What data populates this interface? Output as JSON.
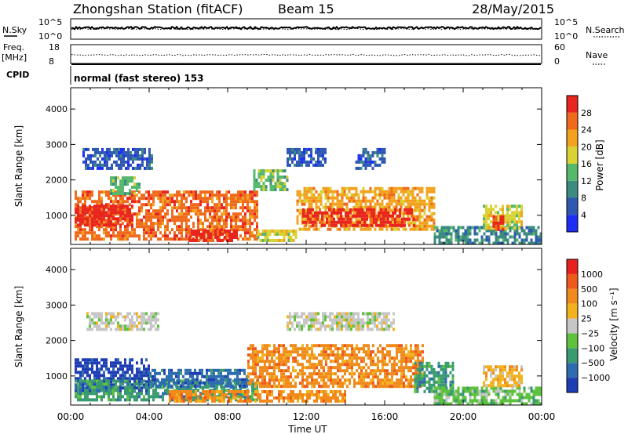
{
  "header": {
    "station": "Zhongshan Station (fitACF)",
    "beam": "Beam 15",
    "date": "28/May/2015"
  },
  "nsky_panel": {
    "left_label": "N.Sky",
    "right_label": "N.Search",
    "left_ticks": [
      "10^5",
      "10^0"
    ],
    "right_ticks": [
      "10^5",
      "10^0"
    ]
  },
  "freq_panel": {
    "left_label": "Freq.",
    "left_unit": "[MHz]",
    "right_label": "Nave",
    "left_ticks": [
      "18",
      "8"
    ],
    "right_ticks": [
      "60",
      "0"
    ]
  },
  "cpid": {
    "label": "CPID",
    "value": "normal (fast stereo) 153"
  },
  "x_axis": {
    "label": "Time UT",
    "ticks": [
      "00:00",
      "04:00",
      "08:00",
      "12:00",
      "16:00",
      "20:00",
      "00:00"
    ],
    "range_hours": [
      0,
      24
    ]
  },
  "y_axis": {
    "label": "Slant Range [km]",
    "ticks": [
      1000,
      2000,
      3000,
      4000
    ],
    "range_km": [
      180,
      4600
    ]
  },
  "power_colorbar": {
    "label": "Power [dB]",
    "ticks": [
      "4",
      "8",
      "12",
      "16",
      "20",
      "24",
      "28"
    ],
    "colors": [
      "#1e2ef5",
      "#2f58b3",
      "#3c8a80",
      "#55b86b",
      "#d8d233",
      "#f2a21e",
      "#ef6a1b",
      "#e8251e"
    ]
  },
  "velocity_colorbar": {
    "label": "Velocity [m s⁻¹]",
    "ticks": [
      "1000",
      "500",
      "100",
      "25",
      "−25",
      "−100",
      "−500",
      "−1000"
    ],
    "colors": [
      "#1e3db3",
      "#2e6cb0",
      "#3a9a70",
      "#5ec23c",
      "#c6c6c6",
      "#f2b21e",
      "#ef8a1b",
      "#ee5a1b",
      "#e8201e"
    ]
  },
  "chart_data": {
    "type": "heatmap",
    "x_unit": "hours UT",
    "y_unit": "km",
    "power_regions": [
      {
        "t0": 0.2,
        "t1": 9.5,
        "r0": 300,
        "r1": 1700,
        "level": 6
      },
      {
        "t0": 0.2,
        "t1": 3.2,
        "r0": 700,
        "r1": 1300,
        "level": 7
      },
      {
        "t0": 6.0,
        "t1": 8.5,
        "r0": 300,
        "r1": 600,
        "level": 7
      },
      {
        "t0": 2.0,
        "t1": 3.5,
        "r0": 1600,
        "r1": 2100,
        "level": 3
      },
      {
        "t0": 0.6,
        "t1": 4.2,
        "r0": 2300,
        "r1": 2900,
        "level": 1
      },
      {
        "t0": 9.5,
        "t1": 11.5,
        "r0": 300,
        "r1": 600,
        "level": 4
      },
      {
        "t0": 9.3,
        "t1": 11.0,
        "r0": 1700,
        "r1": 2300,
        "level": 3
      },
      {
        "t0": 11.5,
        "t1": 18.5,
        "r0": 600,
        "r1": 1800,
        "level": 5
      },
      {
        "t0": 11.8,
        "t1": 17.5,
        "r0": 700,
        "r1": 1200,
        "level": 7
      },
      {
        "t0": 14.5,
        "t1": 16.0,
        "r0": 2300,
        "r1": 2900,
        "level": 1
      },
      {
        "t0": 11.0,
        "t1": 13.0,
        "r0": 2400,
        "r1": 2900,
        "level": 1
      },
      {
        "t0": 18.5,
        "t1": 24.0,
        "r0": 250,
        "r1": 700,
        "level": 2
      },
      {
        "t0": 21.0,
        "t1": 23.0,
        "r0": 600,
        "r1": 1300,
        "level": 4
      },
      {
        "t0": 21.5,
        "t1": 22.0,
        "r0": 600,
        "r1": 1000,
        "level": 7
      }
    ],
    "velocity_regions": [
      {
        "t0": 0.2,
        "t1": 4.0,
        "r0": 600,
        "r1": 1500,
        "level": 0
      },
      {
        "t0": 0.2,
        "t1": 9.5,
        "r0": 300,
        "r1": 900,
        "level": 2
      },
      {
        "t0": 4.0,
        "t1": 9.0,
        "r0": 700,
        "r1": 1200,
        "level": 1
      },
      {
        "t0": 0.8,
        "t1": 4.5,
        "r0": 2300,
        "r1": 2800,
        "level": 4
      },
      {
        "t0": 5.0,
        "t1": 9.0,
        "r0": 300,
        "r1": 600,
        "level": 6
      },
      {
        "t0": 9.0,
        "t1": 18.0,
        "r0": 700,
        "r1": 1900,
        "level": 6
      },
      {
        "t0": 9.0,
        "t1": 14.0,
        "r0": 300,
        "r1": 600,
        "level": 6
      },
      {
        "t0": 11.0,
        "t1": 16.5,
        "r0": 2300,
        "r1": 2800,
        "level": 4
      },
      {
        "t0": 17.5,
        "t1": 19.5,
        "r0": 600,
        "r1": 1400,
        "level": 2
      },
      {
        "t0": 18.5,
        "t1": 24.0,
        "r0": 250,
        "r1": 700,
        "level": 3
      },
      {
        "t0": 21.0,
        "t1": 23.0,
        "r0": 700,
        "r1": 1300,
        "level": 5
      }
    ],
    "nsky_level_fraction": 0.55,
    "freq_mhz": 10.8,
    "nave_level_fraction": 0.45
  }
}
